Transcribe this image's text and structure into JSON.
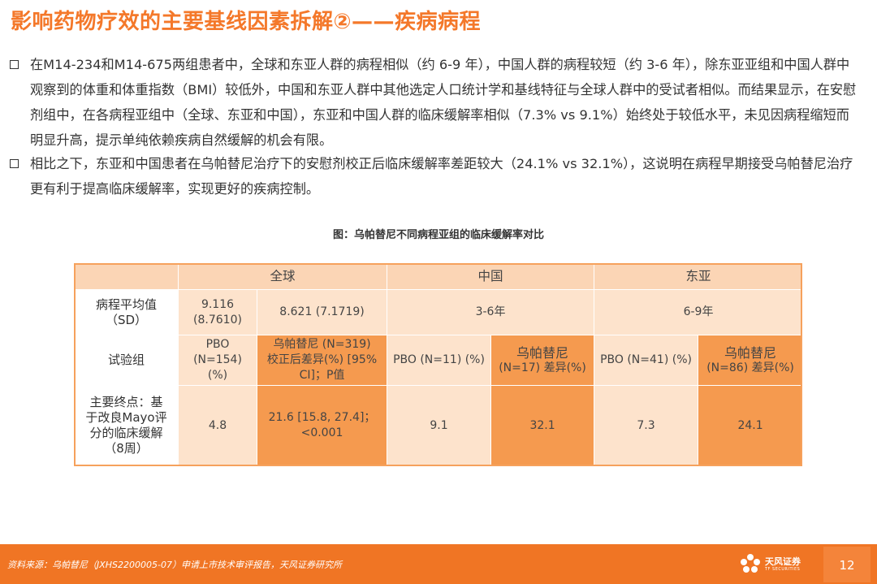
{
  "slide": {
    "title": "影响药物疗效的主要基线因素拆解②——疾病病程"
  },
  "bullets": [
    "在M14-234和M14-675两组患者中，全球和东亚人群的病程相似（约 6-9 年），中国人群的病程较短（约 3-6 年），除东亚亚组和中国人群中观察到的体重和体重指数（BMI）较低外，中国和东亚人群中其他选定人口统计学和基线特征与全球人群中的受试者相似。而结果显示，在安慰剂组中，在各病程亚组中（全球、东亚和中国），东亚和中国人群的临床缓解率相似（7.3% vs 9.1%）始终处于较低水平，未见因病程缩短而明显升高，提示单纯依赖疾病自然缓解的机会有限。",
    "相比之下，东亚和中国患者在乌帕替尼治疗下的安慰剂校正后临床缓解率差距较大（24.1% vs 32.1%），这说明在病程早期接受乌帕替尼治疗更有利于提高临床缓解率，实现更好的疾病控制。"
  ],
  "figure": {
    "caption": "图：乌帕替尼不同病程亚组的临床缓解率对比"
  },
  "table": {
    "header": {
      "global": "全球",
      "china": "中国",
      "east_asia": "东亚"
    },
    "duration": {
      "label_1": "病程平均值",
      "label_2": "（SD）",
      "global_pbo_1": "9.116",
      "global_pbo_2": "(8.7610)",
      "global_upa": "8.621 (7.1719)",
      "china": "3-6年",
      "east_asia": "6-9年"
    },
    "group": {
      "label": "试验组",
      "global_pbo_1": "PBO",
      "global_pbo_2": "(N=154)",
      "global_pbo_3": "(%)",
      "global_upa_1": "乌帕替尼 (N=319)",
      "global_upa_2": "校正后差异(%) [95%",
      "global_upa_3": "CI]；P值",
      "china_pbo": "PBO (N=11) (%)",
      "china_upa_1": "乌帕替尼",
      "china_upa_2": "(N=17) 差异(%)",
      "ea_pbo": "PBO (N=41) (%)",
      "ea_upa_1": "乌帕替尼",
      "ea_upa_2": "(N=86) 差异(%)"
    },
    "endpoint": {
      "label_1": "主要终点：基",
      "label_2": "于改良Mayo评",
      "label_3": "分的临床缓解",
      "label_4": "（8周）",
      "global_pbo": "4.8",
      "global_upa_1": "21.6 [15.8, 27.4]；",
      "global_upa_2": "<0.001",
      "china_pbo": "9.1",
      "china_upa": "32.1",
      "ea_pbo": "7.3",
      "ea_upa": "24.1"
    }
  },
  "footer": {
    "source": "资料来源：乌帕替尼（JXHS2200005-07）申请上市技术审评报告，天风证券研究所",
    "logo_name": "天风证券",
    "logo_sub": "TF SECURITIES",
    "logo_icon": "tf-flower-icon",
    "page_number": "12"
  },
  "colors": {
    "title": "#f4782a",
    "header_fill": "#fbd5b5",
    "light_fill": "#fde3cc",
    "dark_fill": "#f59a4f",
    "footer_bar": "#f07524"
  }
}
